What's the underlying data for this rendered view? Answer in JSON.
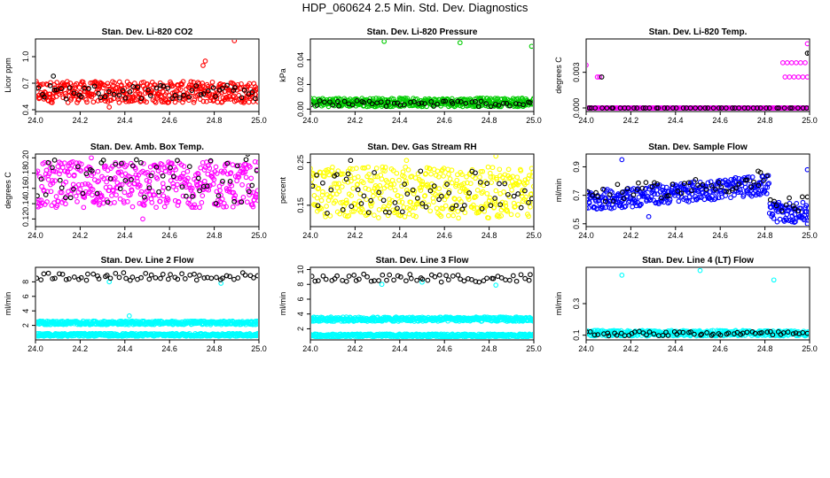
{
  "title": "HDP_060624  2.5 Min. Std. Dev. Diagnostics",
  "colors": {
    "red": "#ff0000",
    "green": "#00cc00",
    "magenta": "#ff00ff",
    "yellow": "#ffff00",
    "blue": "#0000ff",
    "cyan": "#00ffff",
    "black": "#000000"
  },
  "chart_data": [
    {
      "type": "scatter",
      "title": "Stan. Dev. Li-820 CO2",
      "ylabel": "Licor ppm",
      "xlim": [
        24.0,
        25.0
      ],
      "ylim": [
        0.38,
        1.2
      ],
      "xticks": [
        "24.0",
        "24.2",
        "24.4",
        "24.6",
        "24.8",
        "25.0"
      ],
      "yticks": [
        0.4,
        0.7,
        1.0
      ],
      "ytick_labels": [
        "0.4",
        "0.7",
        "1.0"
      ],
      "series": [
        {
          "color": "red",
          "pattern": "band",
          "n": 420,
          "lo": 0.48,
          "hi": 0.72,
          "spikes": [
            [
              24.75,
              0.9
            ],
            [
              24.76,
              0.95
            ],
            [
              24.89,
              1.18
            ],
            [
              24.33,
              0.43
            ]
          ]
        },
        {
          "color": "black",
          "pattern": "band",
          "n": 55,
          "lo": 0.52,
          "hi": 0.68,
          "spikes": [
            [
              24.08,
              0.78
            ]
          ]
        }
      ]
    },
    {
      "type": "scatter",
      "title": "Stan. Dev. Li-820 Pressure",
      "ylabel": "kPa",
      "xlim": [
        24.0,
        25.0
      ],
      "ylim": [
        -0.002,
        0.057
      ],
      "xticks": [
        "24.0",
        "24.2",
        "24.4",
        "24.6",
        "24.8",
        "25.0"
      ],
      "yticks": [
        0.0,
        0.02,
        0.04
      ],
      "ytick_labels": [
        "0.00",
        "0.02",
        "0.04"
      ],
      "series": [
        {
          "color": "green",
          "pattern": "band",
          "n": 420,
          "lo": 0.002,
          "hi": 0.009,
          "spikes": [
            [
              24.33,
              0.055
            ],
            [
              24.67,
              0.054
            ],
            [
              24.99,
              0.051
            ]
          ]
        },
        {
          "color": "black",
          "pattern": "band",
          "n": 55,
          "lo": 0.002,
          "hi": 0.007,
          "spikes": []
        }
      ]
    },
    {
      "type": "scatter",
      "title": "Stan. Dev. Li-820 Temp.",
      "ylabel": "degrees C",
      "xlim": [
        24.0,
        25.0
      ],
      "ylim": [
        -0.0003,
        0.0058
      ],
      "xticks": [
        "24.0",
        "24.2",
        "24.4",
        "24.6",
        "24.8",
        "25.0"
      ],
      "yticks": [
        0.0,
        0.003
      ],
      "ytick_labels": [
        "0.000",
        "0.003"
      ],
      "series": [
        {
          "color": "magenta",
          "pattern": "flat",
          "n": 300,
          "lo": 0.0,
          "hi": 0.0,
          "spikes": [
            [
              24.0,
              0.0036
            ],
            [
              24.05,
              0.0026
            ],
            [
              24.06,
              0.0026
            ],
            [
              24.88,
              0.0038
            ],
            [
              24.9,
              0.0038
            ],
            [
              24.92,
              0.0038
            ],
            [
              24.94,
              0.0038
            ],
            [
              24.96,
              0.0038
            ],
            [
              24.89,
              0.0026
            ],
            [
              24.91,
              0.0026
            ],
            [
              24.93,
              0.0026
            ],
            [
              24.95,
              0.0026
            ],
            [
              24.97,
              0.0026
            ],
            [
              24.99,
              0.0054
            ],
            [
              24.98,
              0.0038
            ],
            [
              24.99,
              0.0026
            ]
          ]
        },
        {
          "color": "black",
          "pattern": "flat",
          "n": 50,
          "lo": 0.0,
          "hi": 0.0,
          "spikes": [
            [
              24.07,
              0.0026
            ],
            [
              24.99,
              0.0046
            ],
            [
              25.0,
              0.0046
            ]
          ]
        }
      ]
    },
    {
      "type": "scatter",
      "title": "Stan. Dev. Amb. Box Temp.",
      "ylabel": "degrees C",
      "xlim": [
        24.0,
        25.0
      ],
      "ylim": [
        0.11,
        0.205
      ],
      "xticks": [
        "24.0",
        "24.2",
        "24.4",
        "24.6",
        "24.8",
        "25.0"
      ],
      "yticks": [
        0.12,
        0.14,
        0.16,
        0.18,
        0.2
      ],
      "ytick_labels": [
        "0.12",
        "0.14",
        "0.16",
        "0.18",
        "0.20"
      ],
      "series": [
        {
          "color": "magenta",
          "pattern": "band",
          "n": 420,
          "lo": 0.135,
          "hi": 0.195,
          "spikes": [
            [
              24.25,
              0.2
            ],
            [
              24.48,
              0.12
            ]
          ]
        },
        {
          "color": "black",
          "pattern": "band",
          "n": 60,
          "lo": 0.14,
          "hi": 0.2,
          "spikes": [
            [
              24.95,
              0.205
            ]
          ]
        }
      ]
    },
    {
      "type": "scatter",
      "title": "Stan. Dev. Gas Stream RH",
      "ylabel": "percent",
      "xlim": [
        24.0,
        25.0
      ],
      "ylim": [
        0.1,
        0.27
      ],
      "xticks": [
        "24.0",
        "24.2",
        "24.4",
        "24.6",
        "24.8",
        "25.0"
      ],
      "yticks": [
        0.15,
        0.25
      ],
      "ytick_labels": [
        "0.15",
        "0.25"
      ],
      "series": [
        {
          "color": "yellow",
          "pattern": "band",
          "n": 420,
          "lo": 0.12,
          "hi": 0.24,
          "spikes": [
            [
              24.83,
              0.265
            ],
            [
              24.43,
              0.255
            ]
          ]
        },
        {
          "color": "black",
          "pattern": "band",
          "n": 60,
          "lo": 0.13,
          "hi": 0.23,
          "spikes": [
            [
              24.18,
              0.255
            ]
          ]
        }
      ]
    },
    {
      "type": "scatter",
      "title": "Stan. Dev. Sample Flow",
      "ylabel": "ml/min",
      "xlim": [
        24.0,
        25.0
      ],
      "ylim": [
        0.48,
        0.99
      ],
      "xticks": [
        "24.0",
        "24.2",
        "24.4",
        "24.6",
        "24.8",
        "25.0"
      ],
      "yticks": [
        0.5,
        0.7,
        0.9
      ],
      "ytick_labels": [
        "0.5",
        "0.7",
        "0.9"
      ],
      "series": [
        {
          "color": "blue",
          "pattern": "flow",
          "n": 420,
          "lo": 0.6,
          "hi": 0.8,
          "spikes": [
            [
              24.16,
              0.95
            ],
            [
              24.99,
              0.5
            ],
            [
              24.28,
              0.55
            ],
            [
              24.99,
              0.88
            ]
          ]
        },
        {
          "color": "black",
          "pattern": "flow",
          "n": 60,
          "lo": 0.65,
          "hi": 0.82,
          "spikes": [
            [
              24.78,
              0.86
            ],
            [
              24.77,
              0.87
            ]
          ]
        }
      ]
    },
    {
      "type": "scatter",
      "title": "Stan. Dev. Line 2 Flow",
      "ylabel": "ml/min",
      "xlim": [
        24.0,
        25.0
      ],
      "ylim": [
        0.0,
        10.0
      ],
      "xticks": [
        "24.0",
        "24.2",
        "24.4",
        "24.6",
        "24.8",
        "25.0"
      ],
      "yticks": [
        2,
        4,
        6,
        8
      ],
      "ytick_labels": [
        "2",
        "4",
        "6",
        "8"
      ],
      "series": [
        {
          "color": "cyan",
          "pattern": "band",
          "n": 420,
          "lo": 2.1,
          "hi": 2.6,
          "spikes": [
            [
              24.42,
              3.3
            ]
          ]
        },
        {
          "color": "cyan",
          "pattern": "band",
          "n": 420,
          "lo": 0.5,
          "hi": 0.9,
          "spikes": [
            [
              24.33,
              8.0
            ],
            [
              24.83,
              7.8
            ]
          ]
        },
        {
          "color": "black",
          "pattern": "band",
          "n": 60,
          "lo": 8.2,
          "hi": 9.3,
          "spikes": []
        }
      ]
    },
    {
      "type": "scatter",
      "title": "Stan. Dev. Line 3 Flow",
      "ylabel": "ml/min",
      "xlim": [
        24.0,
        25.0
      ],
      "ylim": [
        0.5,
        10.3
      ],
      "xticks": [
        "24.0",
        "24.2",
        "24.4",
        "24.6",
        "24.8",
        "25.0"
      ],
      "yticks": [
        2,
        4,
        6,
        8,
        10
      ],
      "ytick_labels": [
        "2",
        "4",
        "6",
        "8",
        "10"
      ],
      "series": [
        {
          "color": "cyan",
          "pattern": "band",
          "n": 420,
          "lo": 3.0,
          "hi": 3.6,
          "spikes": []
        },
        {
          "color": "cyan",
          "pattern": "band",
          "n": 420,
          "lo": 0.9,
          "hi": 1.3,
          "spikes": [
            [
              24.32,
              8.0
            ],
            [
              24.5,
              8.3
            ],
            [
              24.83,
              7.9
            ]
          ]
        },
        {
          "color": "black",
          "pattern": "band",
          "n": 60,
          "lo": 8.3,
          "hi": 9.4,
          "spikes": []
        }
      ]
    },
    {
      "type": "scatter",
      "title": "Stan. Dev. Line 4 (LT) Flow",
      "ylabel": "ml/min",
      "xlim": [
        24.0,
        25.0
      ],
      "ylim": [
        0.07,
        0.53
      ],
      "xticks": [
        "24.0",
        "24.2",
        "24.4",
        "24.6",
        "24.8",
        "25.0"
      ],
      "yticks": [
        0.1,
        0.3
      ],
      "ytick_labels": [
        "0.1",
        "0.3"
      ],
      "series": [
        {
          "color": "cyan",
          "pattern": "band",
          "n": 420,
          "lo": 0.095,
          "hi": 0.13,
          "spikes": [
            [
              24.16,
              0.48
            ],
            [
              24.51,
              0.51
            ],
            [
              24.84,
              0.45
            ]
          ]
        },
        {
          "color": "black",
          "pattern": "band",
          "n": 60,
          "lo": 0.095,
          "hi": 0.125,
          "spikes": []
        }
      ]
    }
  ]
}
